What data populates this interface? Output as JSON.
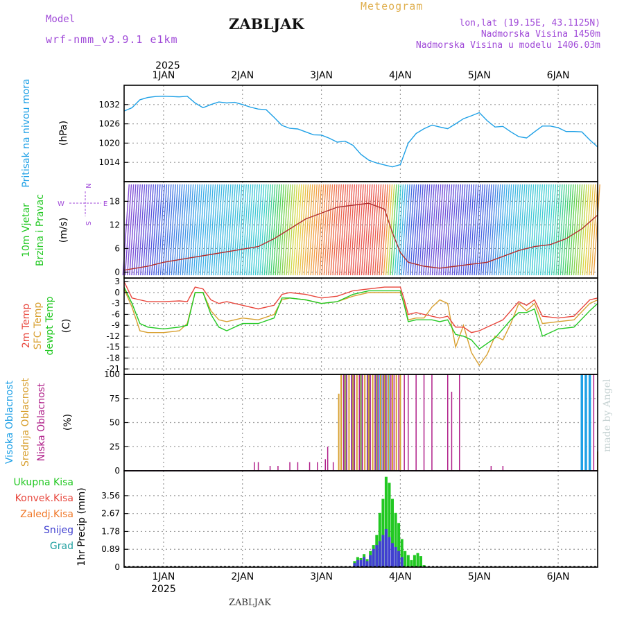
{
  "header": {
    "model_label": "Model",
    "model_name": "wrf-nmm_v3.9.1 e1km",
    "location": "ZABLJAK",
    "meteogram_label": "Meteogram",
    "coords": "lon,lat (19.15E, 43.1125N)",
    "elevation": "Nadmorska Visina 1450m",
    "model_elevation": "Nadmorska Visina u modelu 1406.03m"
  },
  "footer": {
    "location": "ZABLJAK",
    "credit": "made by Angel"
  },
  "colors": {
    "pressure": "#1ea0e6",
    "temp2m": "#e8463c",
    "sfc_temp": "#d8a030",
    "dewpt": "#22c822",
    "high_cloud": "#1ea0e6",
    "mid_cloud": "#d8a030",
    "low_cloud": "#b0208a",
    "total_precip": "#22c822",
    "convective": "#e8463c",
    "frozen": "#f07828",
    "snow": "#4040d0",
    "graupel": "#20a0a0",
    "label_purple": "#a04ad8"
  },
  "chart_data": [
    {
      "type": "line",
      "panel": "pressure",
      "ylabel_main": "Pritisak na nivou mora",
      "ylabel_unit": "(hPa)",
      "ylim": [
        1008,
        1038
      ],
      "yticks": [
        1014,
        1020,
        1026,
        1032
      ],
      "x_top_year": "2025",
      "x_top_ticks": [
        "1JAN",
        "2JAN",
        "3JAN",
        "4JAN",
        "5JAN",
        "6JAN"
      ],
      "grid": true,
      "series": [
        {
          "x": [
            0.5,
            0.6,
            0.7,
            0.8,
            0.9,
            1.0,
            1.1,
            1.2,
            1.3,
            1.4,
            1.5,
            1.6,
            1.7,
            1.8,
            1.9,
            2.0,
            2.1,
            2.2,
            2.3,
            2.4,
            2.5,
            2.6,
            2.7,
            2.8,
            2.9,
            3.0,
            3.1,
            3.2,
            3.3,
            3.4,
            3.5,
            3.6,
            3.7,
            3.8,
            3.9,
            4.0,
            4.1,
            4.2,
            4.3,
            4.4,
            4.5,
            4.6,
            4.7,
            4.8,
            4.9,
            5.0,
            5.1,
            5.2,
            5.3,
            5.4,
            5.5,
            5.6,
            5.7,
            5.8,
            5.9,
            6.0,
            6.1,
            6.2,
            6.3,
            6.4,
            6.5
          ],
          "y": [
            1030,
            1031,
            1033.5,
            1034.2,
            1034.5,
            1034.6,
            1034.5,
            1034.4,
            1034.6,
            1032.5,
            1031,
            1032,
            1032.8,
            1032.5,
            1032.7,
            1032,
            1031.2,
            1030.6,
            1030.4,
            1028,
            1025.5,
            1024.6,
            1024.4,
            1023.5,
            1022.6,
            1022.5,
            1021.5,
            1020.3,
            1020.6,
            1019.3,
            1016.5,
            1014.7,
            1013.8,
            1013.2,
            1012.6,
            1013.3,
            1020,
            1023,
            1024.5,
            1025.6,
            1025,
            1024.5,
            1026,
            1027.6,
            1028.5,
            1029.5,
            1027,
            1025,
            1025.2,
            1023.5,
            1022,
            1021.6,
            1023.5,
            1025.3,
            1025.3,
            1024.8,
            1023.6,
            1023.6,
            1023.5,
            1021,
            1018.8
          ]
        }
      ]
    },
    {
      "type": "line",
      "panel": "wind",
      "ylabel_main": "10m Vjetar",
      "ylabel_sub": "Brzina i Pravac",
      "ylabel_unit": "(m/s)",
      "compass": {
        "north": "N",
        "south": "S",
        "west": "W",
        "east": "E"
      },
      "ylim": [
        -1.5,
        23
      ],
      "yticks": [
        0,
        6,
        12,
        18
      ],
      "grid": true,
      "series": [
        {
          "name": "wind speed",
          "x": [
            0.5,
            0.8,
            1.0,
            1.3,
            1.6,
            1.9,
            2.2,
            2.4,
            2.6,
            2.8,
            3.0,
            3.2,
            3.4,
            3.6,
            3.8,
            3.9,
            4.0,
            4.1,
            4.3,
            4.5,
            4.7,
            4.9,
            5.1,
            5.3,
            5.5,
            5.7,
            5.9,
            6.1,
            6.3,
            6.5
          ],
          "y": [
            0.5,
            1.5,
            2.5,
            3.5,
            4.5,
            5.5,
            6.5,
            8.5,
            11.0,
            13.5,
            15.0,
            16.5,
            17.0,
            17.5,
            16.0,
            10.0,
            5.0,
            2.5,
            1.5,
            1.0,
            1.5,
            2.0,
            2.5,
            4.0,
            5.5,
            6.5,
            7.0,
            8.5,
            11.0,
            14.5
          ]
        }
      ]
    },
    {
      "type": "line",
      "panel": "temperature",
      "ylabel_series": [
        "2m Temp",
        "SFC Temp",
        "dewpt Temp"
      ],
      "ylabel_unit": "(C)",
      "ylim": [
        -22.5,
        4
      ],
      "yticks": [
        -21,
        -18,
        -15,
        -12,
        -9,
        -6,
        -3,
        0,
        3
      ],
      "grid": true,
      "series": [
        {
          "name": "2m Temp",
          "x": [
            0.5,
            0.6,
            0.7,
            0.8,
            1.0,
            1.2,
            1.3,
            1.4,
            1.5,
            1.6,
            1.7,
            1.8,
            2.0,
            2.2,
            2.4,
            2.5,
            2.6,
            2.8,
            3.0,
            3.2,
            3.4,
            3.6,
            3.8,
            4.0,
            4.05,
            4.1,
            4.2,
            4.3,
            4.4,
            4.5,
            4.6,
            4.7,
            4.8,
            4.9,
            5.0,
            5.1,
            5.2,
            5.3,
            5.4,
            5.5,
            5.6,
            5.7,
            5.8,
            6.0,
            6.2,
            6.4,
            6.5
          ],
          "y": [
            3.0,
            -1.5,
            -2.0,
            -2.5,
            -2.5,
            -2.3,
            -2.5,
            1.5,
            1.0,
            -2.0,
            -3.0,
            -2.5,
            -3.5,
            -4.5,
            -3.5,
            -0.5,
            0.0,
            -0.5,
            -1.5,
            -1.0,
            0.5,
            1.0,
            1.5,
            1.5,
            -2.0,
            -6.0,
            -5.5,
            -6.0,
            -6.5,
            -7.0,
            -6.5,
            -9.5,
            -9.5,
            -11.0,
            -10.5,
            -9.5,
            -8.5,
            -7.5,
            -5.0,
            -2.5,
            -3.5,
            -2.0,
            -6.5,
            -7.0,
            -6.5,
            -2.0,
            -1.5
          ]
        },
        {
          "name": "SFC Temp",
          "x": [
            0.5,
            0.6,
            0.7,
            0.8,
            1.0,
            1.2,
            1.3,
            1.4,
            1.5,
            1.6,
            1.7,
            1.8,
            2.0,
            2.2,
            2.4,
            2.5,
            2.6,
            2.8,
            3.0,
            3.2,
            3.4,
            3.6,
            3.8,
            4.0,
            4.05,
            4.1,
            4.2,
            4.3,
            4.4,
            4.5,
            4.6,
            4.7,
            4.8,
            4.9,
            5.0,
            5.1,
            5.2,
            5.3,
            5.4,
            5.5,
            5.6,
            5.7,
            5.8,
            6.0,
            6.2,
            6.4,
            6.5
          ],
          "y": [
            1.0,
            -4.0,
            -10.5,
            -11.0,
            -11.0,
            -10.5,
            -8.5,
            0.0,
            0.0,
            -5.0,
            -7.5,
            -8.0,
            -7.0,
            -7.5,
            -6.0,
            -2.0,
            -1.5,
            -2.0,
            -3.0,
            -2.5,
            -1.0,
            0.0,
            0.0,
            0.0,
            -3.0,
            -7.5,
            -7.0,
            -7.0,
            -4.0,
            -2.0,
            -3.0,
            -15.0,
            -9.0,
            -16.5,
            -20.0,
            -17.0,
            -12.0,
            -13.0,
            -8.5,
            -3.0,
            -5.0,
            -3.0,
            -8.5,
            -8.0,
            -7.5,
            -3.0,
            -2.0
          ]
        },
        {
          "name": "dewpt Temp",
          "x": [
            0.5,
            0.6,
            0.7,
            0.8,
            1.0,
            1.2,
            1.3,
            1.4,
            1.5,
            1.6,
            1.7,
            1.8,
            2.0,
            2.2,
            2.4,
            2.5,
            2.6,
            2.8,
            3.0,
            3.2,
            3.4,
            3.6,
            3.8,
            4.0,
            4.05,
            4.1,
            4.2,
            4.3,
            4.4,
            4.5,
            4.6,
            4.7,
            4.8,
            4.9,
            5.0,
            5.1,
            5.2,
            5.3,
            5.4,
            5.5,
            5.6,
            5.7,
            5.8,
            6.0,
            6.2,
            6.4,
            6.5
          ],
          "y": [
            1.5,
            -3.0,
            -8.5,
            -9.5,
            -10.0,
            -9.5,
            -9.0,
            0.0,
            0.0,
            -6.0,
            -9.5,
            -10.5,
            -8.5,
            -8.5,
            -7.0,
            -1.5,
            -1.5,
            -2.0,
            -3.0,
            -2.5,
            -0.5,
            0.5,
            0.5,
            0.5,
            -3.5,
            -8.0,
            -7.5,
            -7.5,
            -7.5,
            -8.0,
            -7.5,
            -11.5,
            -12.0,
            -13.0,
            -15.5,
            -14.0,
            -12.5,
            -10.0,
            -7.5,
            -5.5,
            -5.5,
            -4.5,
            -12.0,
            -10.0,
            -9.5,
            -5.0,
            -3.0
          ]
        }
      ]
    },
    {
      "type": "bar",
      "panel": "clouds",
      "ylabel_series": [
        "Visoka Oblacnost",
        "Srednja Oblacnost",
        "Niska Oblacnost"
      ],
      "ylabel_unit": "(%)",
      "ylim": [
        0,
        100
      ],
      "yticks": [
        0,
        25,
        50,
        75,
        100
      ],
      "grid": true,
      "series": [
        {
          "name": "Visoka Oblacnost",
          "x": [
            3.3,
            3.4,
            3.5,
            3.6,
            3.7,
            3.75,
            3.8,
            3.85,
            6.3,
            6.35,
            6.4
          ],
          "y": [
            100,
            100,
            100,
            100,
            100,
            100,
            100,
            100,
            100,
            100,
            100
          ]
        },
        {
          "name": "Srednja Oblacnost",
          "x": [
            3.22,
            3.25,
            3.3,
            3.35,
            3.4,
            3.45,
            3.5,
            3.55,
            3.6,
            3.65,
            3.7,
            3.75,
            3.8,
            3.85,
            3.9,
            3.95,
            4.0,
            6.5
          ],
          "y": [
            80,
            100,
            100,
            100,
            100,
            100,
            100,
            100,
            100,
            100,
            100,
            100,
            100,
            100,
            100,
            100,
            100,
            20
          ]
        },
        {
          "name": "Niska Oblacnost",
          "x": [
            2.15,
            2.2,
            2.35,
            2.45,
            2.6,
            2.7,
            2.85,
            2.95,
            3.05,
            3.08,
            3.15,
            3.28,
            3.32,
            3.38,
            3.42,
            3.48,
            3.52,
            3.58,
            3.62,
            3.68,
            3.72,
            3.78,
            3.82,
            3.88,
            3.92,
            3.98,
            4.05,
            4.1,
            4.2,
            4.3,
            4.4,
            4.6,
            4.65,
            4.75,
            5.15,
            5.3,
            6.45
          ],
          "y": [
            9,
            9,
            5,
            5,
            9,
            9,
            9,
            9,
            12,
            25,
            9,
            100,
            100,
            100,
            100,
            100,
            100,
            100,
            100,
            100,
            100,
            100,
            100,
            100,
            100,
            100,
            100,
            100,
            100,
            100,
            100,
            100,
            82,
            100,
            5,
            5,
            100
          ]
        }
      ]
    },
    {
      "type": "bar",
      "panel": "precipitation",
      "ylabel_series": [
        "Ukupna Kisa",
        "Konvek.Kisa",
        "Zaledj.Kisa",
        "Snijeg",
        "Grad"
      ],
      "ylabel_unit": "1hr Precip (mm)",
      "ylim": [
        0,
        4.8
      ],
      "yticks": [
        0,
        0.89,
        1.78,
        2.67,
        3.56
      ],
      "x_bottom_ticks": [
        "1JAN",
        "2JAN",
        "3JAN",
        "4JAN",
        "5JAN",
        "6JAN"
      ],
      "x_bottom_year": "2025",
      "grid": true,
      "series": [
        {
          "name": "Ukupna Kisa",
          "x": [
            3.42,
            3.46,
            3.5,
            3.54,
            3.58,
            3.62,
            3.66,
            3.7,
            3.74,
            3.78,
            3.82,
            3.86,
            3.9,
            3.94,
            3.98,
            4.02,
            4.06,
            4.1,
            4.14,
            4.18,
            4.22,
            4.26,
            4.3
          ],
          "y": [
            0.3,
            0.5,
            0.45,
            0.65,
            0.4,
            0.8,
            1.1,
            1.6,
            2.7,
            3.4,
            4.5,
            4.2,
            3.4,
            2.7,
            2.2,
            1.4,
            0.8,
            0.6,
            0.35,
            0.6,
            0.7,
            0.55,
            0.1
          ]
        },
        {
          "name": "Snijeg",
          "x": [
            3.42,
            3.46,
            3.5,
            3.54,
            3.58,
            3.62,
            3.66,
            3.7,
            3.74,
            3.78,
            3.82,
            3.86,
            3.9,
            3.94,
            3.98,
            4.02
          ],
          "y": [
            0.2,
            0.35,
            0.35,
            0.5,
            0.3,
            0.6,
            0.9,
            1.1,
            1.3,
            1.6,
            1.9,
            1.5,
            1.2,
            1.0,
            0.8,
            0.5
          ]
        }
      ]
    }
  ]
}
